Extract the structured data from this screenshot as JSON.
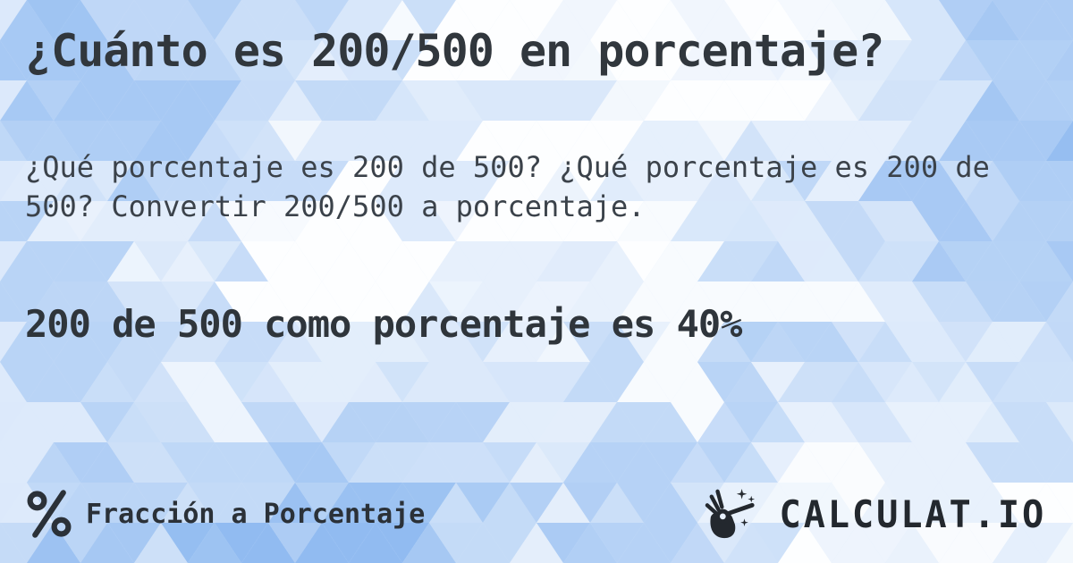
{
  "page": {
    "title": "¿Cuánto es 200/500 en porcentaje?",
    "description": "¿Qué porcentaje es 200 de 500? ¿Qué porcentaje es 200 de 500? Convertir 200/500 a porcentaje.",
    "answer": "200 de 500 como porcentaje es 40%"
  },
  "footer": {
    "category": {
      "icon": "percent-icon",
      "label": "Fracción a Porcentaje"
    },
    "brand": {
      "icon": "magic-wand-hand-icon",
      "name": "CALCULAT.IO"
    }
  },
  "colors": {
    "text_primary": "#31373d",
    "text_secondary": "#3b424a",
    "text_footer": "#23282e",
    "background_blue": "#8cb8f0",
    "background_white": "#ffffff"
  }
}
